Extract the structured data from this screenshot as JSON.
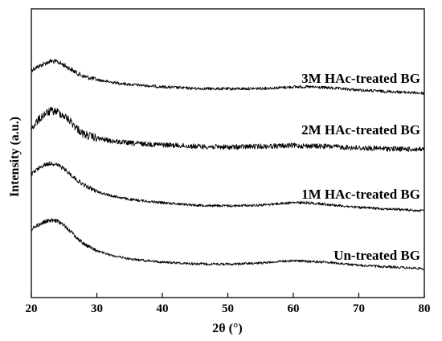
{
  "chart_data": {
    "type": "line",
    "xlabel": "2θ (°)",
    "ylabel": "Intensity (a.u.)",
    "xlim": [
      20,
      80
    ],
    "x_ticks": [
      20,
      30,
      40,
      50,
      60,
      70,
      80
    ],
    "y_ticks_shown": false,
    "grid": false,
    "legend": "labels placed beside each curve, right side",
    "series": [
      {
        "name": "3M HAc-treated BG",
        "points": [
          [
            20,
            87
          ],
          [
            21,
            83
          ],
          [
            22,
            79
          ],
          [
            23,
            76
          ],
          [
            24,
            77
          ],
          [
            25,
            81
          ],
          [
            26,
            86
          ],
          [
            27,
            91
          ],
          [
            28,
            95
          ],
          [
            30,
            99
          ],
          [
            32,
            102
          ],
          [
            35,
            105
          ],
          [
            40,
            108
          ],
          [
            45,
            110
          ],
          [
            50,
            110.5
          ],
          [
            55,
            110
          ],
          [
            58,
            109
          ],
          [
            60,
            108
          ],
          [
            62,
            108
          ],
          [
            65,
            109
          ],
          [
            70,
            112
          ],
          [
            75,
            114
          ],
          [
            80,
            116
          ]
        ]
      },
      {
        "name": "2M HAc-treated BG",
        "points": [
          [
            20,
            160
          ],
          [
            21,
            150
          ],
          [
            22,
            142
          ],
          [
            23,
            138
          ],
          [
            24,
            139
          ],
          [
            25,
            144
          ],
          [
            26,
            151
          ],
          [
            27,
            160
          ],
          [
            28,
            167
          ],
          [
            30,
            172
          ],
          [
            32,
            175
          ],
          [
            35,
            178
          ],
          [
            40,
            180
          ],
          [
            45,
            182
          ],
          [
            50,
            183
          ],
          [
            55,
            182
          ],
          [
            60,
            181
          ],
          [
            65,
            182
          ],
          [
            70,
            184
          ],
          [
            75,
            185
          ],
          [
            80,
            186
          ]
        ]
      },
      {
        "name": "1M HAc-treated BG",
        "points": [
          [
            20,
            217
          ],
          [
            21,
            210
          ],
          [
            22,
            205
          ],
          [
            23,
            203
          ],
          [
            24,
            205
          ],
          [
            25,
            210
          ],
          [
            26,
            217
          ],
          [
            27,
            224
          ],
          [
            28,
            230
          ],
          [
            30,
            238
          ],
          [
            32,
            243
          ],
          [
            35,
            248
          ],
          [
            40,
            252
          ],
          [
            45,
            255
          ],
          [
            50,
            256
          ],
          [
            55,
            255
          ],
          [
            58,
            253
          ],
          [
            60,
            252
          ],
          [
            62,
            252
          ],
          [
            65,
            254
          ],
          [
            70,
            258
          ],
          [
            75,
            260
          ],
          [
            80,
            262
          ]
        ]
      },
      {
        "name": "Un-treated BG",
        "points": [
          [
            20,
            285
          ],
          [
            21,
            280
          ],
          [
            22,
            276
          ],
          [
            23,
            274
          ],
          [
            24,
            275
          ],
          [
            25,
            280
          ],
          [
            26,
            288
          ],
          [
            27,
            296
          ],
          [
            28,
            303
          ],
          [
            30,
            312
          ],
          [
            32,
            317
          ],
          [
            35,
            322
          ],
          [
            40,
            326
          ],
          [
            45,
            328
          ],
          [
            50,
            328.5
          ],
          [
            55,
            327
          ],
          [
            58,
            325
          ],
          [
            60,
            324
          ],
          [
            62,
            325
          ],
          [
            65,
            326
          ],
          [
            70,
            330
          ],
          [
            75,
            332
          ],
          [
            80,
            334
          ]
        ]
      }
    ]
  }
}
